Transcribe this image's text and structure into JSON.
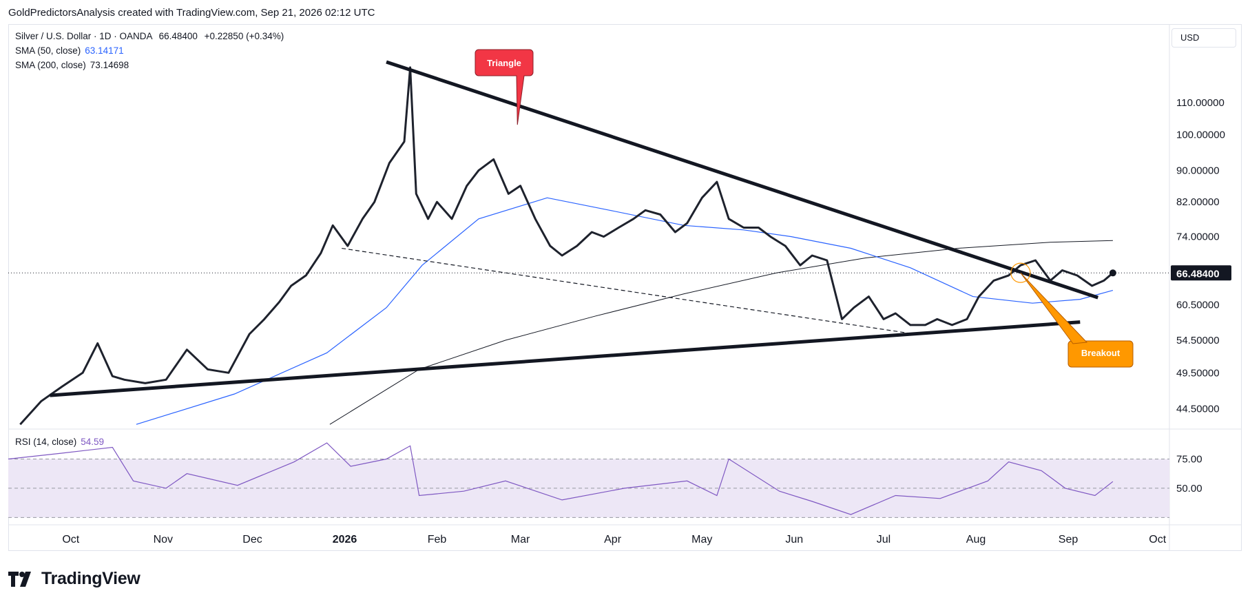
{
  "header": {
    "text": "GoldPredictorsAnalysis created with TradingView.com, Sep 21, 2026 02:12 UTC"
  },
  "legend": {
    "symbol": "Silver / U.S. Dollar · 1D · OANDA",
    "price": "66.48400",
    "change": "+0.22850 (+0.34%)",
    "sma50_label": "SMA (50, close)",
    "sma50_value": "63.14171",
    "sma200_label": "SMA (200, close)",
    "sma200_value": "73.14698",
    "rsi_label": "RSI (14, close)",
    "rsi_value": "54.59"
  },
  "currency": "USD",
  "price_axis": [
    "110.00000",
    "100.00000",
    "90.00000",
    "82.00000",
    "74.00000",
    "60.50000",
    "54.50000",
    "49.50000",
    "44.50000"
  ],
  "last_price_tag": "66.48400",
  "rsi_axis": [
    "75.00",
    "50.00"
  ],
  "months": [
    "Oct",
    "Nov",
    "Dec",
    "2026",
    "Feb",
    "Mar",
    "Apr",
    "May",
    "Jun",
    "Jul",
    "Aug",
    "Sep",
    "Oct"
  ],
  "annotations": {
    "triangle": "Triangle",
    "breakout": "Breakout"
  },
  "brand": "TradingView",
  "colors": {
    "price_line": "#1e222d",
    "sma50": "#2962ff",
    "sma200": "#131722",
    "rsi": "#7e57c2",
    "triangle_callout": "#f23645",
    "breakout_callout": "#ff9800",
    "rsi_band": "#ede7f6"
  },
  "chart_data": {
    "type": "line",
    "title": "Silver / U.S. Dollar · 1D · OANDA",
    "y_scale": "log",
    "ylim": [
      42,
      125
    ],
    "xlim": [
      "2025-09-15",
      "2026-10-10"
    ],
    "series": [
      {
        "name": "Silver / U.S. Dollar",
        "x": [
          "2025-09-19",
          "2025-09-26",
          "2025-10-03",
          "2025-10-10",
          "2025-10-15",
          "2025-10-20",
          "2025-10-24",
          "2025-10-31",
          "2025-11-07",
          "2025-11-14",
          "2025-11-21",
          "2025-11-28",
          "2025-12-05",
          "2025-12-10",
          "2025-12-15",
          "2025-12-19",
          "2025-12-24",
          "2025-12-29",
          "2026-01-02",
          "2026-01-07",
          "2026-01-12",
          "2026-01-16",
          "2026-01-21",
          "2026-01-26",
          "2026-01-28",
          "2026-01-30",
          "2026-02-03",
          "2026-02-06",
          "2026-02-11",
          "2026-02-16",
          "2026-02-20",
          "2026-02-25",
          "2026-03-02",
          "2026-03-06",
          "2026-03-11",
          "2026-03-16",
          "2026-03-20",
          "2026-03-25",
          "2026-03-30",
          "2026-04-03",
          "2026-04-08",
          "2026-04-13",
          "2026-04-17",
          "2026-04-22",
          "2026-04-27",
          "2026-05-01",
          "2026-05-06",
          "2026-05-11",
          "2026-05-15",
          "2026-05-20",
          "2026-05-25",
          "2026-05-29",
          "2026-06-03",
          "2026-06-08",
          "2026-06-12",
          "2026-06-17",
          "2026-06-22",
          "2026-06-26",
          "2026-07-01",
          "2026-07-06",
          "2026-07-10",
          "2026-07-15",
          "2026-07-20",
          "2026-07-24",
          "2026-07-29",
          "2026-08-03",
          "2026-08-07",
          "2026-08-12",
          "2026-08-17",
          "2026-08-21",
          "2026-08-26",
          "2026-08-31",
          "2026-09-04",
          "2026-09-09",
          "2026-09-14",
          "2026-09-18",
          "2026-09-21"
        ],
        "values": [
          42.5,
          45.5,
          47.5,
          49.5,
          54.0,
          49.0,
          48.5,
          48.0,
          48.5,
          53.0,
          50.0,
          49.5,
          55.5,
          58.0,
          61.0,
          64.0,
          66.0,
          70.5,
          76.5,
          72.0,
          78.0,
          82.0,
          92.0,
          98.0,
          122.0,
          84.0,
          78.0,
          82.0,
          78.0,
          86.0,
          90.0,
          93.0,
          84.0,
          86.0,
          78.0,
          72.0,
          70.0,
          72.0,
          75.0,
          74.0,
          76.0,
          78.0,
          80.0,
          79.0,
          75.0,
          77.0,
          83.0,
          87.0,
          78.0,
          76.0,
          76.0,
          74.0,
          72.0,
          68.0,
          70.0,
          69.0,
          58.0,
          60.0,
          62.0,
          58.0,
          59.0,
          57.0,
          57.0,
          58.0,
          57.0,
          58.0,
          62.0,
          65.0,
          66.0,
          68.0,
          69.0,
          65.0,
          67.0,
          66.0,
          64.0,
          65.0,
          66.48
        ]
      },
      {
        "name": "SMA (50, close)",
        "x": [
          "2025-10-28",
          "2025-11-30",
          "2025-12-31",
          "2026-01-20",
          "2026-02-01",
          "2026-02-20",
          "2026-03-15",
          "2026-04-05",
          "2026-04-30",
          "2026-05-20",
          "2026-06-05",
          "2026-06-25",
          "2026-07-15",
          "2026-08-05",
          "2026-08-25",
          "2026-09-10",
          "2026-09-21"
        ],
        "values": [
          42.5,
          46.5,
          52.5,
          60.0,
          68.0,
          78.0,
          83.0,
          80.0,
          76.5,
          75.5,
          74.0,
          71.5,
          67.5,
          62.0,
          60.8,
          61.5,
          63.14
        ]
      },
      {
        "name": "SMA (200, close)",
        "x": [
          "2026-01-01",
          "2026-01-31",
          "2026-03-01",
          "2026-03-31",
          "2026-04-30",
          "2026-05-31",
          "2026-06-30",
          "2026-07-31",
          "2026-08-31",
          "2026-09-21"
        ],
        "values": [
          42.5,
          50.0,
          54.5,
          58.5,
          62.5,
          66.5,
          69.5,
          71.5,
          72.8,
          73.15
        ]
      },
      {
        "name": "RSI (14, close)",
        "x": [
          "2025-09-15",
          "2025-10-03",
          "2025-10-20",
          "2025-10-27",
          "2025-11-07",
          "2025-11-14",
          "2025-12-01",
          "2025-12-20",
          "2025-12-31",
          "2026-01-08",
          "2026-01-20",
          "2026-01-28",
          "2026-01-31",
          "2026-02-15",
          "2026-03-01",
          "2026-03-20",
          "2026-04-10",
          "2026-05-01",
          "2026-05-11",
          "2026-05-15",
          "2026-06-01",
          "2026-06-12",
          "2026-06-25",
          "2026-07-10",
          "2026-07-25",
          "2026-08-10",
          "2026-08-17",
          "2026-08-28",
          "2026-09-05",
          "2026-09-15",
          "2026-09-21"
        ],
        "values": [
          70,
          74,
          78,
          55,
          50,
          60,
          52,
          68,
          81,
          65,
          70,
          79,
          45,
          48,
          55,
          42,
          50,
          55,
          45,
          70,
          48,
          41,
          32,
          45,
          43,
          55,
          68,
          62,
          50,
          45,
          54.59
        ]
      }
    ],
    "rsi_range": [
      25,
      90
    ],
    "rsi_levels": [
      70,
      50,
      30
    ],
    "trendlines": [
      {
        "name": "upper",
        "x": [
          "2026-01-20",
          "2026-09-16"
        ],
        "values": [
          124,
          61.8
        ]
      },
      {
        "name": "lower",
        "x": [
          "2025-09-29",
          "2026-09-10"
        ],
        "values": [
          46.3,
          57.5
        ]
      },
      {
        "name": "dashed",
        "x": [
          "2026-01-05",
          "2026-07-15"
        ],
        "values": [
          71.5,
          55.6
        ]
      }
    ]
  }
}
